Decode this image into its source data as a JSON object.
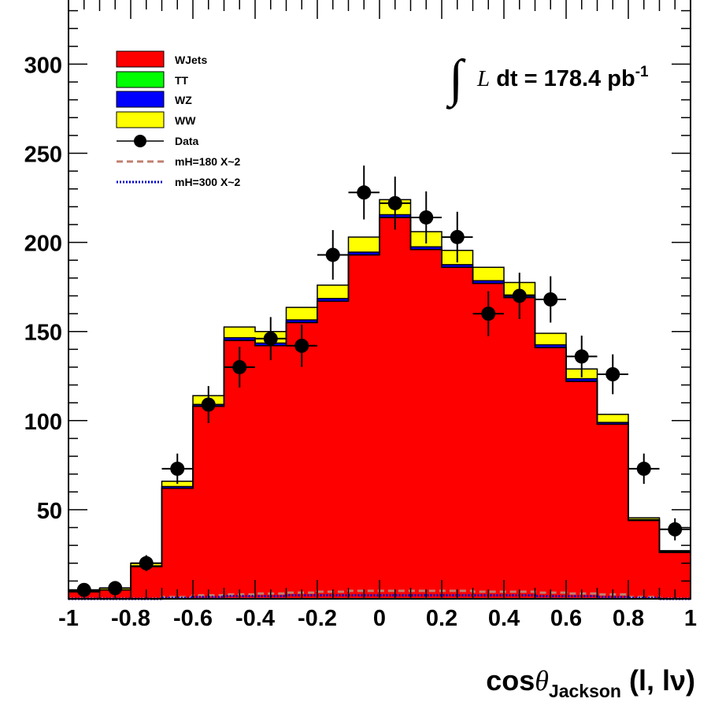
{
  "chart_data": {
    "type": "histogram",
    "xlabel": {
      "main": "cos",
      "theta": "θ",
      "sub": "Jackson",
      "tail": " (l, lν)"
    },
    "xlim": [
      -1,
      1
    ],
    "ylim": [
      0,
      336
    ],
    "x_ticks": [
      -1,
      -0.8,
      -0.6,
      -0.4,
      -0.2,
      0,
      0.2,
      0.4,
      0.6,
      0.8,
      1
    ],
    "x_tick_labels": [
      "-1",
      "-0.8",
      "-0.6",
      "-0.4",
      "-0.2",
      "0",
      "0.2",
      "0.4",
      "0.6",
      "0.8",
      "1"
    ],
    "y_ticks": [
      50,
      100,
      150,
      200,
      250,
      300
    ],
    "y_tick_labels": [
      "50",
      "100",
      "150",
      "200",
      "250",
      "300"
    ],
    "bin_edges": [
      -1.0,
      -0.9,
      -0.8,
      -0.7,
      -0.6,
      -0.5,
      -0.4,
      -0.3,
      -0.2,
      -0.1,
      0.0,
      0.1,
      0.2,
      0.3,
      0.4,
      0.5,
      0.6,
      0.7,
      0.8,
      0.9,
      1.0
    ],
    "annotation": {
      "integral": "∫",
      "L": "L",
      "text": " dt = 178.4 pb",
      "sup": "-1"
    },
    "stack": [
      {
        "name": "WJets",
        "color": "#ff0000",
        "values": [
          4,
          5,
          18,
          62,
          108,
          145,
          142,
          155,
          167,
          193,
          214,
          196,
          186,
          177,
          169,
          141,
          122,
          98,
          44,
          26
        ]
      },
      {
        "name": "TT",
        "color": "#00ff00",
        "values": [
          0,
          0,
          0,
          0,
          0,
          0,
          0,
          0,
          0,
          0,
          0,
          0,
          0,
          0,
          0,
          0,
          0,
          0,
          0,
          0
        ]
      },
      {
        "name": "WZ",
        "color": "#0000ff",
        "values": [
          0,
          0,
          0.5,
          1,
          1,
          1.5,
          1.5,
          1.5,
          1.5,
          1.5,
          1.5,
          1.5,
          1.5,
          1.5,
          1.5,
          1.5,
          1.5,
          1,
          0.5,
          0.5
        ]
      },
      {
        "name": "WW",
        "color": "#ffff00",
        "values": [
          0.5,
          1,
          1.5,
          3,
          5,
          6,
          6.5,
          7,
          7.5,
          8.5,
          8.5,
          8.5,
          8,
          7.5,
          7,
          6.5,
          5.5,
          4.5,
          1,
          0.5
        ]
      }
    ],
    "data": {
      "name": "Data",
      "x": [
        -0.95,
        -0.85,
        -0.75,
        -0.65,
        -0.55,
        -0.45,
        -0.35,
        -0.25,
        -0.15,
        -0.05,
        0.05,
        0.15,
        0.25,
        0.35,
        0.45,
        0.55,
        0.65,
        0.75,
        0.85,
        0.95
      ],
      "y": [
        5,
        6,
        20,
        73,
        109,
        130,
        146,
        142,
        193,
        228,
        222,
        214,
        203,
        160,
        170,
        168,
        136,
        126,
        73,
        39
      ],
      "err": [
        2.2,
        2.4,
        4.5,
        8.5,
        10.4,
        11.4,
        12.1,
        11.9,
        13.9,
        15.1,
        14.9,
        14.6,
        14.2,
        12.6,
        13.0,
        13.0,
        11.7,
        11.2,
        8.5,
        6.2
      ]
    },
    "signals": [
      {
        "name": "mH=180 X~2",
        "color": "#c08070",
        "style": "dashed",
        "values": [
          0,
          0,
          0,
          1,
          2,
          2.5,
          3,
          3.5,
          4,
          4.5,
          4.5,
          4.5,
          4.5,
          4,
          4,
          3.5,
          3,
          2.5,
          1,
          0
        ]
      },
      {
        "name": "mH=300 X~2",
        "color": "#0000cc",
        "style": "dotted",
        "values": [
          0,
          0,
          0,
          0.5,
          1,
          1.5,
          1.5,
          2,
          2,
          2,
          2,
          2,
          2,
          2,
          2,
          1.5,
          1.5,
          1,
          0.5,
          0
        ]
      }
    ],
    "legend": {
      "position": "top-left",
      "order": [
        "WJets",
        "TT",
        "WZ",
        "WW",
        "Data",
        "mH=180 X~2",
        "mH=300 X~2"
      ]
    }
  }
}
